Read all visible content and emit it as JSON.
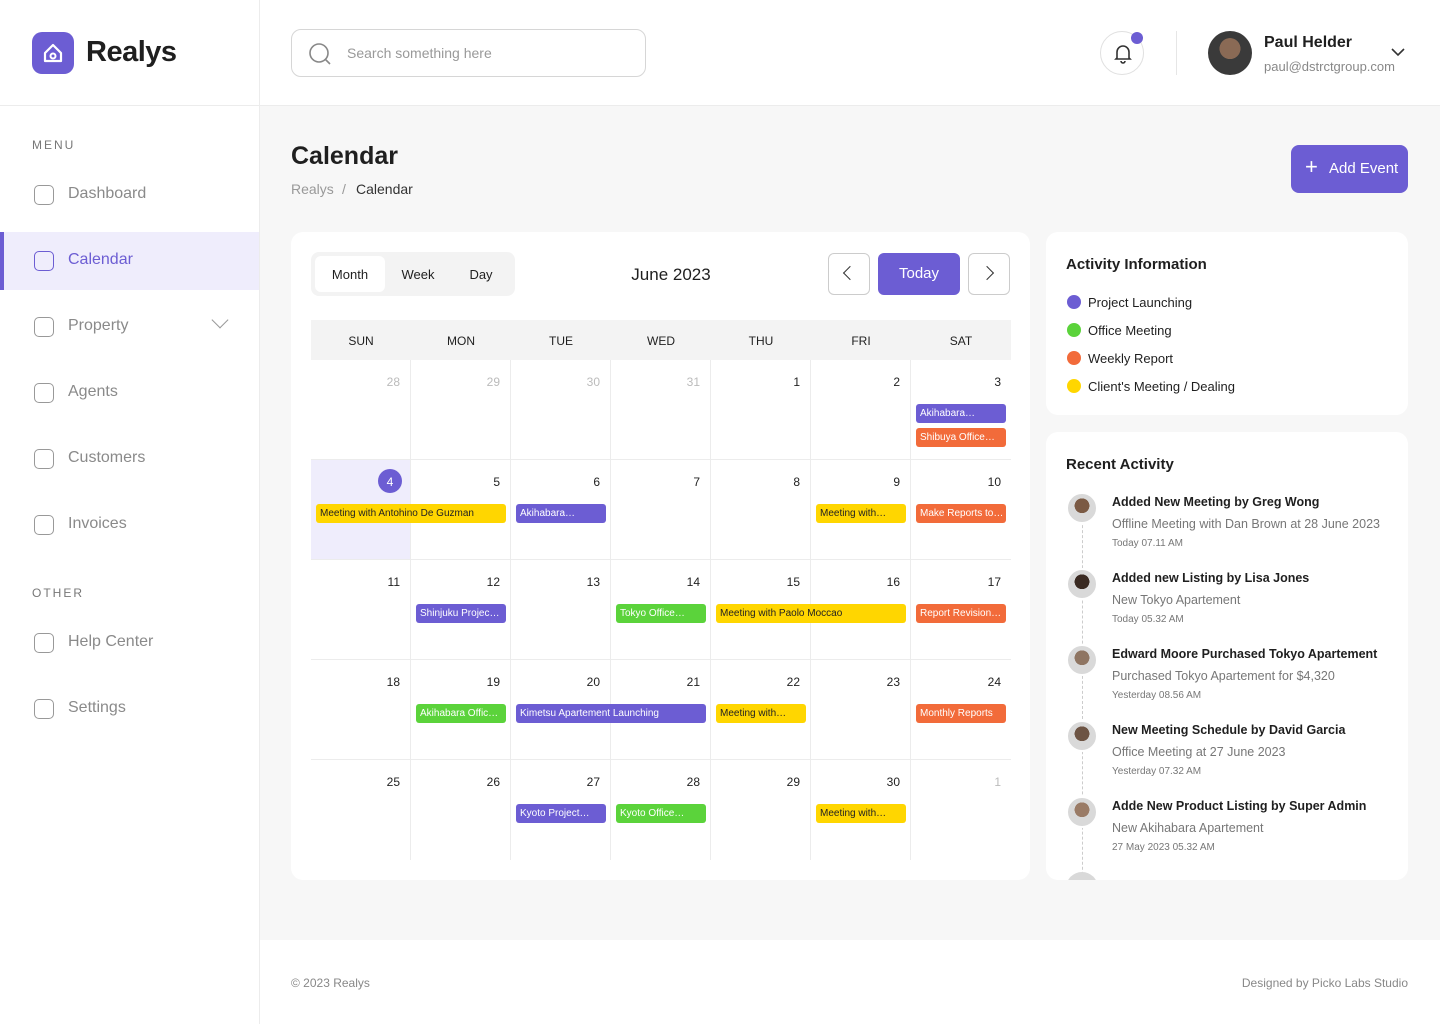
{
  "brand": "Realys",
  "search_placeholder": "Search something here",
  "user": {
    "name": "Paul Helder",
    "email": "paul@dstrctgroup.com"
  },
  "menu": {
    "heading": "MENU",
    "items": [
      "Dashboard",
      "Calendar",
      "Property",
      "Agents",
      "Customers",
      "Invoices"
    ],
    "active": 1
  },
  "other": {
    "heading": "OTHER",
    "items": [
      "Help Center",
      "Settings"
    ]
  },
  "page": {
    "title": "Calendar",
    "breadcrumb": [
      "Realys",
      "/",
      "Calendar"
    ],
    "add_button": "Add Event"
  },
  "calendar": {
    "views": [
      "Month",
      "Week",
      "Day"
    ],
    "active_view": 0,
    "month_label": "June 2023",
    "today_button": "Today",
    "weekdays": [
      "SUN",
      "MON",
      "TUE",
      "WED",
      "THU",
      "FRI",
      "SAT"
    ],
    "weeks": [
      [
        {
          "day": 28,
          "muted": true
        },
        {
          "day": 29,
          "muted": true
        },
        {
          "day": 30,
          "muted": true
        },
        {
          "day": 31,
          "muted": true
        },
        {
          "day": 1
        },
        {
          "day": 2
        },
        {
          "day": 3,
          "events": [
            {
              "label": "Akihabara…",
              "color": "#6c5dd3"
            },
            {
              "label": "Shibuya Office…",
              "color": "#f26b3a"
            }
          ]
        }
      ],
      [
        {
          "day": 4,
          "today": true,
          "events": [
            {
              "label": "Meeting with Antohino De Guzman",
              "color": "#ffd600",
              "span": 2
            }
          ]
        },
        {
          "day": 5
        },
        {
          "day": 6,
          "events": [
            {
              "label": "Akihabara…",
              "color": "#6c5dd3"
            }
          ]
        },
        {
          "day": 7
        },
        {
          "day": 8
        },
        {
          "day": 9,
          "events": [
            {
              "label": "Meeting with…",
              "color": "#ffd600"
            }
          ]
        },
        {
          "day": 10,
          "events": [
            {
              "label": "Make Reports to…",
              "color": "#f26b3a"
            }
          ]
        }
      ],
      [
        {
          "day": 11
        },
        {
          "day": 12,
          "events": [
            {
              "label": "Shinjuku Projec…",
              "color": "#6c5dd3"
            }
          ]
        },
        {
          "day": 13
        },
        {
          "day": 14,
          "events": [
            {
              "label": "Tokyo Office…",
              "color": "#5bd33b"
            }
          ]
        },
        {
          "day": 15,
          "events": [
            {
              "label": "Meeting with Paolo Moccao",
              "color": "#ffd600",
              "span": 2
            }
          ]
        },
        {
          "day": 16
        },
        {
          "day": 17,
          "events": [
            {
              "label": "Report Revision…",
              "color": "#f26b3a"
            }
          ]
        }
      ],
      [
        {
          "day": 18
        },
        {
          "day": 19,
          "events": [
            {
              "label": "Akihabara Offic…",
              "color": "#5bd33b"
            }
          ]
        },
        {
          "day": 20,
          "events": [
            {
              "label": "Kimetsu Apartement Launching",
              "color": "#6c5dd3",
              "span": 2
            }
          ]
        },
        {
          "day": 21
        },
        {
          "day": 22,
          "events": [
            {
              "label": "Meeting with…",
              "color": "#ffd600"
            }
          ]
        },
        {
          "day": 23
        },
        {
          "day": 24,
          "events": [
            {
              "label": "Monthly Reports",
              "color": "#f26b3a"
            }
          ]
        }
      ],
      [
        {
          "day": 25
        },
        {
          "day": 26
        },
        {
          "day": 27,
          "events": [
            {
              "label": "Kyoto Project…",
              "color": "#6c5dd3"
            }
          ]
        },
        {
          "day": 28,
          "events": [
            {
              "label": "Kyoto Office…",
              "color": "#5bd33b"
            }
          ]
        },
        {
          "day": 29
        },
        {
          "day": 30,
          "events": [
            {
              "label": "Meeting with…",
              "color": "#ffd600"
            }
          ]
        },
        {
          "day": 1,
          "muted": true
        }
      ]
    ]
  },
  "activity_info": {
    "title": "Activity Information",
    "items": [
      {
        "name": "Project Launching",
        "color": "#6c5dd3"
      },
      {
        "name": "Office Meeting",
        "color": "#5bd33b"
      },
      {
        "name": "Weekly Report",
        "color": "#f26b3a"
      },
      {
        "name": "Client's Meeting / Dealing",
        "color": "#ffd600"
      }
    ]
  },
  "recent_activity": {
    "title": "Recent Activity",
    "items": [
      {
        "title": "Added New Meeting by Greg Wong",
        "detail": "Offline Meeting with Dan Brown at 28 June 2023",
        "time": "Today 07.11 AM"
      },
      {
        "title": "Added new Listing by Lisa Jones",
        "detail": "New Tokyo Apartement",
        "time": "Today 05.32 AM"
      },
      {
        "title": "Edward Moore Purchased Tokyo Apartement",
        "detail": "Purchased Tokyo Apartement for $4,320",
        "time": "Yesterday 08.56 AM"
      },
      {
        "title": "New Meeting Schedule by David Garcia",
        "detail": "Office Meeting at 27 June 2023",
        "time": "Yesterday 07.32 AM"
      },
      {
        "title": "Adde New Product Listing by Super Admin",
        "detail": "New Akihabara Apartement",
        "time": "27 May 2023 05.32 AM"
      }
    ]
  },
  "footer": {
    "copyright": "© 2023 Realys",
    "credit": "Designed by Picko Labs Studio"
  }
}
